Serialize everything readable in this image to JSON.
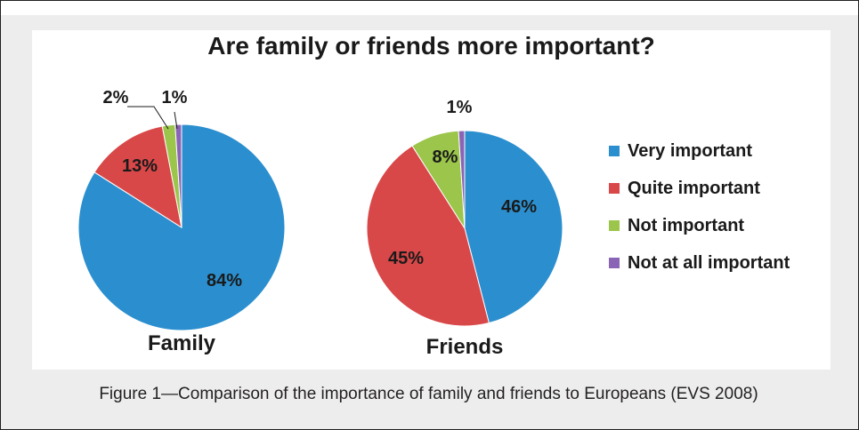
{
  "figure": {
    "caption": "Figure 1—Comparison of the importance of family and friends to Europeans (EVS 2008)"
  },
  "chart_data": {
    "type": "pie",
    "title": "Are family or friends more important?",
    "categories": [
      "Very important",
      "Quite important",
      "Not important",
      "Not at all important"
    ],
    "colors": [
      "#2b8fcf",
      "#d94849",
      "#9bc54b",
      "#8a65b5"
    ],
    "legend_position": "right",
    "pies": [
      {
        "name": "Family",
        "values": [
          84,
          13,
          2,
          1
        ],
        "labels": [
          "84%",
          "13%",
          "2%",
          "1%"
        ]
      },
      {
        "name": "Friends",
        "values": [
          46,
          45,
          8,
          1
        ],
        "labels": [
          "46%",
          "45%",
          "8%",
          "1%"
        ]
      }
    ]
  }
}
